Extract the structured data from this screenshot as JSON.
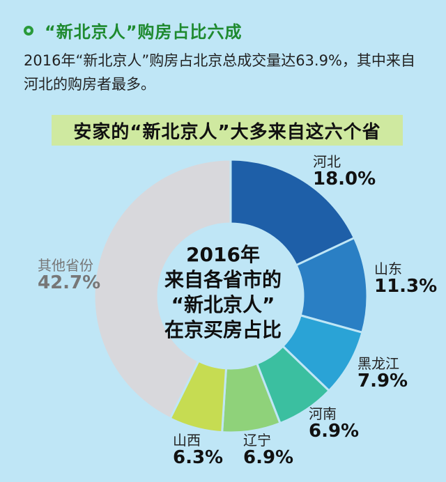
{
  "header": {
    "title": "“新北京人”购房占比六成"
  },
  "intro": {
    "text": "2016年“新北京人”购房占北京总成交量达63.9%，其中来自河北的购房者最多。"
  },
  "banner": {
    "text": "安家的“新北京人”大多来自这六个省"
  },
  "center": {
    "line1": "2016年",
    "line2": "来自各省市的",
    "line3": "“新北京人”",
    "line4": "在京买房占比"
  },
  "chart_data": {
    "type": "pie",
    "title": "2016年来自各省市的“新北京人”在京买房占比",
    "categories": [
      "河北",
      "山东",
      "黑龙江",
      "河南",
      "辽宁",
      "山西",
      "其他省份"
    ],
    "values": [
      18.0,
      11.3,
      7.9,
      6.9,
      6.9,
      6.3,
      42.7
    ],
    "value_labels": [
      "18.0%",
      "11.3%",
      "7.9%",
      "6.9%",
      "6.9%",
      "6.3%",
      "42.7%"
    ],
    "colors": [
      "#1e5fa8",
      "#2a7fc4",
      "#2aa3d6",
      "#3bbfa0",
      "#8fd27a",
      "#c6dc52",
      "#d8d8dc"
    ]
  }
}
